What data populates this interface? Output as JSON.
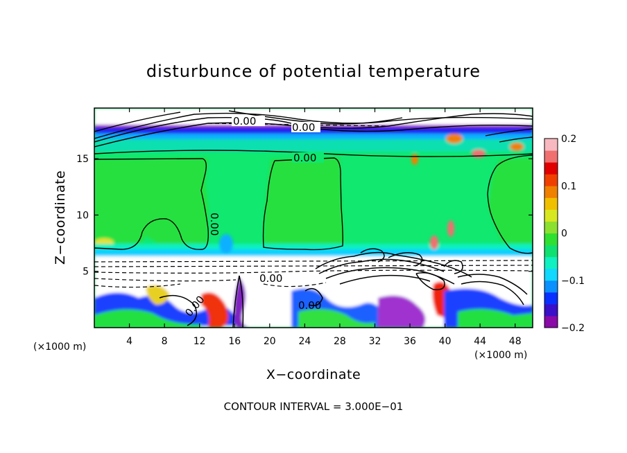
{
  "chart_data": {
    "type": "heatmap",
    "title": "disturbunce of potential temperature",
    "xlabel": "X−coordinate",
    "ylabel": "Z−coordinate",
    "x_unit": "(×1000 m)",
    "y_unit": "(×1000 m)",
    "xlim": [
      0,
      50
    ],
    "ylim": [
      0,
      19.5
    ],
    "x_ticks": [
      4,
      8,
      12,
      16,
      20,
      24,
      28,
      32,
      36,
      40,
      44,
      48
    ],
    "y_ticks": [
      5,
      10,
      15
    ],
    "colorbar": {
      "range": [
        -0.2,
        0.2
      ],
      "tick_labels": [
        "0.2",
        "0.1",
        "0",
        "−0.1",
        "−0.2"
      ],
      "tick_values": [
        0.2,
        0.1,
        0,
        -0.1,
        -0.2
      ],
      "colors": [
        "#8a0aa8",
        "#3a10c8",
        "#0a30ff",
        "#0a90ff",
        "#10d8ff",
        "#10f0c0",
        "#10e070",
        "#30e030",
        "#8ce030",
        "#d8e820",
        "#f0c000",
        "#f08000",
        "#f04000",
        "#e00000",
        "#f07070",
        "#f8b8c0"
      ]
    },
    "contour_labels": [
      "0.00",
      "0.00",
      "0.00",
      "0.00",
      "0.00",
      "0.00",
      "0.00"
    ],
    "contour_interval_text": "CONTOUR INTERVAL = 3.000E−01",
    "grid": false
  }
}
